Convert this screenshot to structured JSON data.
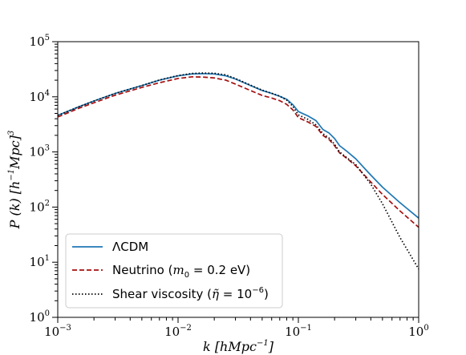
{
  "chart_data": {
    "type": "line",
    "xlabel": "k [hMpc^-1]",
    "ylabel": "P(k) [h^-1 Mpc]^3",
    "xscale": "log",
    "yscale": "log",
    "xlim": [
      0.001,
      1
    ],
    "ylim": [
      1,
      100000
    ],
    "xticks": [
      {
        "base": "10",
        "exp": "−3",
        "value": 0.001
      },
      {
        "base": "10",
        "exp": "−2",
        "value": 0.01
      },
      {
        "base": "10",
        "exp": "−1",
        "value": 0.1
      },
      {
        "base": "10",
        "exp": "0",
        "value": 1
      }
    ],
    "yticks": [
      {
        "base": "10",
        "exp": "0",
        "value": 1
      },
      {
        "base": "10",
        "exp": "1",
        "value": 10
      },
      {
        "base": "10",
        "exp": "2",
        "value": 100
      },
      {
        "base": "10",
        "exp": "3",
        "value": 1000
      },
      {
        "base": "10",
        "exp": "4",
        "value": 10000
      },
      {
        "base": "10",
        "exp": "5",
        "value": 100000
      }
    ],
    "grid": false,
    "legend_position": "bottom-left",
    "series": [
      {
        "name": "ΛCDM",
        "color": "#1f77b4",
        "style": "solid",
        "x": [
          0.001,
          0.0015,
          0.002,
          0.003,
          0.005,
          0.007,
          0.01,
          0.013,
          0.016,
          0.02,
          0.025,
          0.03,
          0.04,
          0.05,
          0.06,
          0.07,
          0.08,
          0.09,
          0.1,
          0.12,
          0.14,
          0.16,
          0.18,
          0.2,
          0.22,
          0.25,
          0.3,
          0.4,
          0.5,
          0.7,
          1.0
        ],
        "y": [
          4600,
          6600,
          8400,
          11500,
          16000,
          20000,
          24000,
          26000,
          26300,
          26000,
          24000,
          21000,
          16000,
          13000,
          11500,
          10200,
          9000,
          7200,
          5400,
          4500,
          3700,
          2550,
          2200,
          1750,
          1300,
          1050,
          750,
          380,
          230,
          120,
          63
        ]
      },
      {
        "name": "Neutrino (m_0 = 0.2 eV)",
        "color": "#a50f0f",
        "style": "dashed",
        "x": [
          0.001,
          0.0015,
          0.002,
          0.003,
          0.005,
          0.007,
          0.01,
          0.013,
          0.016,
          0.02,
          0.025,
          0.03,
          0.04,
          0.05,
          0.06,
          0.07,
          0.08,
          0.09,
          0.1,
          0.12,
          0.14,
          0.16,
          0.18,
          0.2,
          0.22,
          0.25,
          0.3,
          0.4,
          0.5,
          0.7,
          1.0
        ],
        "y": [
          4300,
          6200,
          7800,
          10700,
          14800,
          18000,
          21500,
          23000,
          22800,
          22000,
          20000,
          17000,
          13000,
          10600,
          9500,
          8500,
          7300,
          5800,
          4200,
          3500,
          2900,
          2000,
          1680,
          1300,
          960,
          780,
          560,
          285,
          170,
          85,
          43
        ]
      },
      {
        "name": "Shear viscosity (η̃ = 10^-6)",
        "color": "#000000",
        "style": "dotted",
        "x": [
          0.001,
          0.0015,
          0.002,
          0.003,
          0.005,
          0.007,
          0.01,
          0.013,
          0.016,
          0.02,
          0.025,
          0.03,
          0.04,
          0.05,
          0.06,
          0.07,
          0.08,
          0.09,
          0.1,
          0.12,
          0.14,
          0.16,
          0.18,
          0.2,
          0.22,
          0.25,
          0.3,
          0.4,
          0.5,
          0.7,
          1.0
        ],
        "y": [
          4600,
          6600,
          8400,
          11500,
          16000,
          20200,
          24300,
          26500,
          27000,
          26700,
          25000,
          21500,
          16300,
          13200,
          11600,
          10300,
          8700,
          6700,
          4700,
          3900,
          3100,
          2150,
          1780,
          1380,
          1000,
          800,
          590,
          260,
          115,
          28,
          7.5
        ]
      }
    ],
    "legend": {
      "entries": [
        {
          "prefix": "ΛCDM",
          "math": "",
          "suffix": ""
        },
        {
          "prefix": "Neutrino (",
          "math": "m",
          "sub": "0",
          "rest": " = 0.2 eV)",
          "suffix": ""
        },
        {
          "prefix": "Shear viscosity (",
          "math": "η̃",
          "rest": " = 10",
          "sup": "−6",
          "suffix": ")"
        }
      ]
    }
  }
}
